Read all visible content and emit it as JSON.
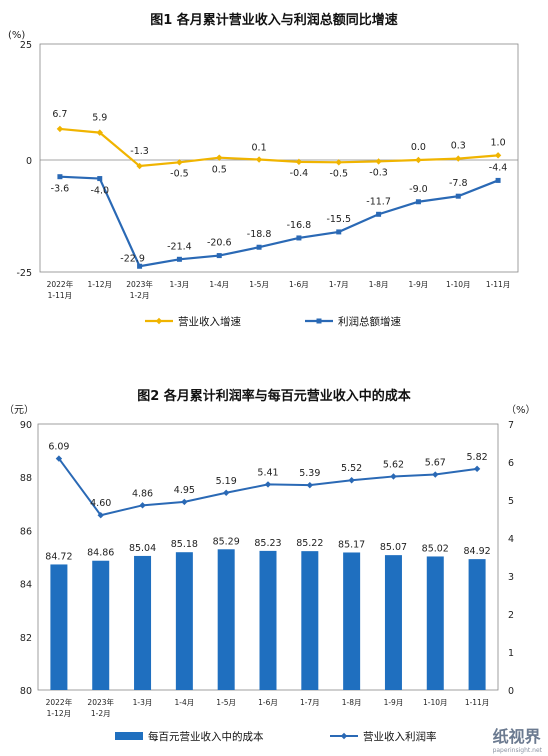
{
  "colors": {
    "revenue": "#f0b400",
    "profit": "#2a69b5",
    "bar": "#1f6fbf",
    "cost_rate": "#2a69b5"
  },
  "chart_data": [
    {
      "type": "line",
      "title": "图1  各月累计营业收入与利润总额同比增速",
      "y_unit": "(%)",
      "ylim": [
        -25,
        25
      ],
      "yticks": [
        "25",
        "0",
        "-25"
      ],
      "categories": [
        [
          "2022年",
          "1-11月"
        ],
        [
          "1-12月"
        ],
        [
          "2023年",
          "1-2月"
        ],
        [
          "1-3月"
        ],
        [
          "1-4月"
        ],
        [
          "1-5月"
        ],
        [
          "1-6月"
        ],
        [
          "1-7月"
        ],
        [
          "1-8月"
        ],
        [
          "1-9月"
        ],
        [
          "1-10月"
        ],
        [
          "1-11月"
        ]
      ],
      "series": [
        {
          "name": "营业收入增速",
          "values": [
            6.7,
            5.9,
            -1.3,
            -0.5,
            0.5,
            0.1,
            -0.4,
            -0.5,
            -0.3,
            0.0,
            0.3,
            1.0
          ],
          "labels": [
            "6.7",
            "5.9",
            "-1.3",
            "-0.5",
            "0.5",
            "0.1",
            "-0.4",
            "-0.5",
            "-0.3",
            "0.0",
            "0.3",
            "1.0"
          ]
        },
        {
          "name": "利润总额增速",
          "values": [
            -3.6,
            -4.0,
            -22.9,
            -21.4,
            -20.6,
            -18.8,
            -16.8,
            -15.5,
            -11.7,
            -9.0,
            -7.8,
            -4.4
          ],
          "labels": [
            "-3.6",
            "-4.0",
            "-22.9",
            "-21.4",
            "-20.6",
            "-18.8",
            "-16.8",
            "-15.5",
            "-11.7",
            "-9.0",
            "-7.8",
            "-4.4"
          ]
        }
      ],
      "legend": "bottom"
    },
    {
      "type": "bar",
      "title": "图2  各月累计利润率与每百元营业收入中的成本",
      "y_unit_left": "（元）",
      "y_unit_right": "（%）",
      "ylim_left": [
        80,
        90
      ],
      "yticks_left": [
        "90",
        "88",
        "86",
        "84",
        "82",
        "80"
      ],
      "ylim_right": [
        0,
        7
      ],
      "yticks_right": [
        "7",
        "6",
        "5",
        "4",
        "3",
        "2",
        "1",
        "0"
      ],
      "categories": [
        [
          "2022年",
          "1-12月"
        ],
        [
          "2023年",
          "1-2月"
        ],
        [
          "1-3月"
        ],
        [
          "1-4月"
        ],
        [
          "1-5月"
        ],
        [
          "1-6月"
        ],
        [
          "1-7月"
        ],
        [
          "1-8月"
        ],
        [
          "1-9月"
        ],
        [
          "1-10月"
        ],
        [
          "1-11月"
        ]
      ],
      "series": [
        {
          "name": "每百元营业收入中的成本",
          "axis": "left",
          "type": "bar",
          "values": [
            84.72,
            84.86,
            85.04,
            85.18,
            85.29,
            85.23,
            85.22,
            85.17,
            85.07,
            85.02,
            84.92
          ],
          "labels": [
            "84.72",
            "84.86",
            "85.04",
            "85.18",
            "85.29",
            "85.23",
            "85.22",
            "85.17",
            "85.07",
            "85.02",
            "84.92"
          ]
        },
        {
          "name": "营业收入利润率",
          "axis": "right",
          "type": "line",
          "values": [
            6.09,
            4.6,
            4.86,
            4.95,
            5.19,
            5.41,
            5.39,
            5.52,
            5.62,
            5.67,
            5.82
          ],
          "labels": [
            "6.09",
            "4.60",
            "4.86",
            "4.95",
            "5.19",
            "5.41",
            "5.39",
            "5.52",
            "5.62",
            "5.67",
            "5.82"
          ]
        }
      ],
      "legend": "bottom"
    }
  ],
  "watermark": {
    "text": "纸视界",
    "sub": "paperinsight.net"
  }
}
